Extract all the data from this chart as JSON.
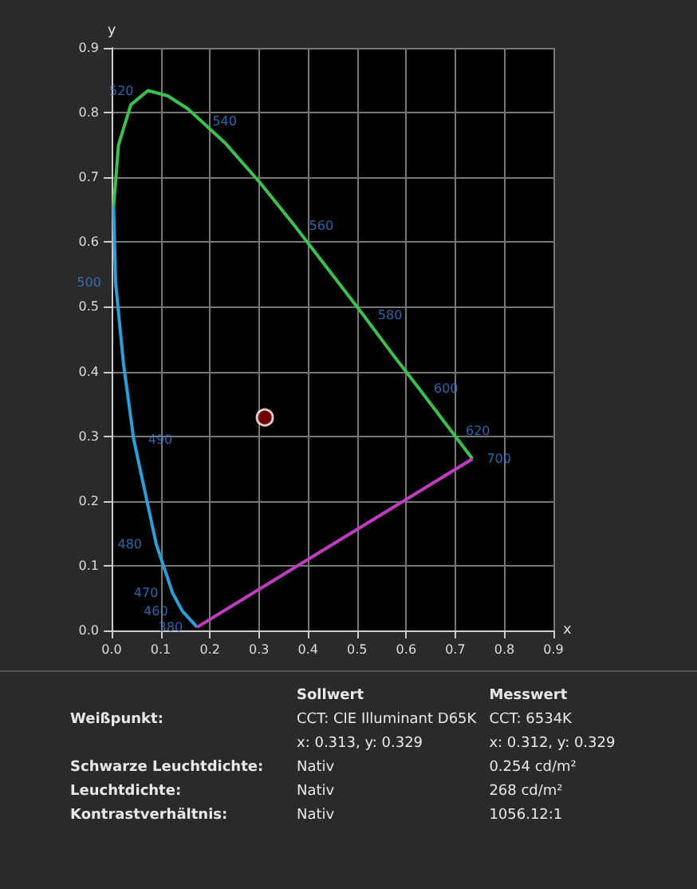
{
  "chart_data": {
    "type": "scatter",
    "xlabel": "x",
    "ylabel": "y",
    "xlim": [
      0,
      0.9
    ],
    "ylim": [
      0,
      0.9
    ],
    "xticks": [
      {
        "value": 0,
        "label": "0.0"
      },
      0.1,
      0.2,
      0.3,
      0.4,
      0.5,
      0.6,
      0.7,
      0.8,
      0.9
    ],
    "yticks": [
      {
        "value": 0,
        "label": "0.0"
      },
      0.1,
      0.2,
      0.3,
      0.4,
      0.5,
      0.6,
      0.7,
      0.8,
      0.9
    ],
    "grid": true,
    "marker": "none",
    "line_style": "solid",
    "series": [
      {
        "type": "line",
        "color": "#2a9fd8",
        "x": [
          0.174,
          0.144,
          0.124,
          0.091,
          0.045,
          0.024,
          0.008,
          0.004
        ],
        "values": [
          0.005,
          0.03,
          0.058,
          0.133,
          0.295,
          0.413,
          0.538,
          0.655
        ]
      },
      {
        "type": "line",
        "color": "#3cc050",
        "x": [
          0.004,
          0.014,
          0.039,
          0.074,
          0.114,
          0.155,
          0.23,
          0.302,
          0.373,
          0.444,
          0.513,
          0.575,
          0.627,
          0.692,
          0.719,
          0.735
        ],
        "values": [
          0.655,
          0.75,
          0.812,
          0.834,
          0.826,
          0.806,
          0.754,
          0.692,
          0.625,
          0.555,
          0.487,
          0.424,
          0.373,
          0.308,
          0.281,
          0.265
        ]
      },
      {
        "type": "line",
        "color": "#c03cc0",
        "x": [
          0.174,
          0.735
        ],
        "values": [
          0.005,
          0.265
        ]
      },
      {
        "color": "#8b0000",
        "marker": "circle",
        "x": [
          0.312
        ],
        "values": [
          0.329
        ]
      }
    ],
    "annotations": [
      {
        "text": "380",
        "x": 0.174,
        "y": 0.005
      },
      {
        "text": "460",
        "x": 0.144,
        "y": 0.03
      },
      {
        "text": "470",
        "x": 0.124,
        "y": 0.058
      },
      {
        "text": "480",
        "x": 0.091,
        "y": 0.133
      },
      {
        "text": "490",
        "x": 0.045,
        "y": 0.295
      },
      {
        "text": "500",
        "x": 0.008,
        "y": 0.538
      },
      {
        "text": "520",
        "x": 0.074,
        "y": 0.834
      },
      {
        "text": "540",
        "x": 0.23,
        "y": 0.754
      },
      {
        "text": "560",
        "x": 0.373,
        "y": 0.625
      },
      {
        "text": "580",
        "x": 0.513,
        "y": 0.487
      },
      {
        "text": "600",
        "x": 0.627,
        "y": 0.373
      },
      {
        "text": "620",
        "x": 0.692,
        "y": 0.308
      },
      {
        "text": "700",
        "x": 0.735,
        "y": 0.265
      },
      "Sollwert",
      "Messwert",
      "Weißpunkt:",
      "CCT: CIE Illuminant D65K\nx: 0.313, y: 0.329",
      "CCT: 6534K\nx: 0.312, y: 0.329",
      "Schwarze Leuchtdichte:",
      "Nativ",
      "0.254 cd/m²",
      "Leuchtdichte:",
      "Nativ",
      "268 cd/m²",
      "Kontrastverhältnis:",
      "Nativ",
      "1056.12:1"
    ]
  }
}
